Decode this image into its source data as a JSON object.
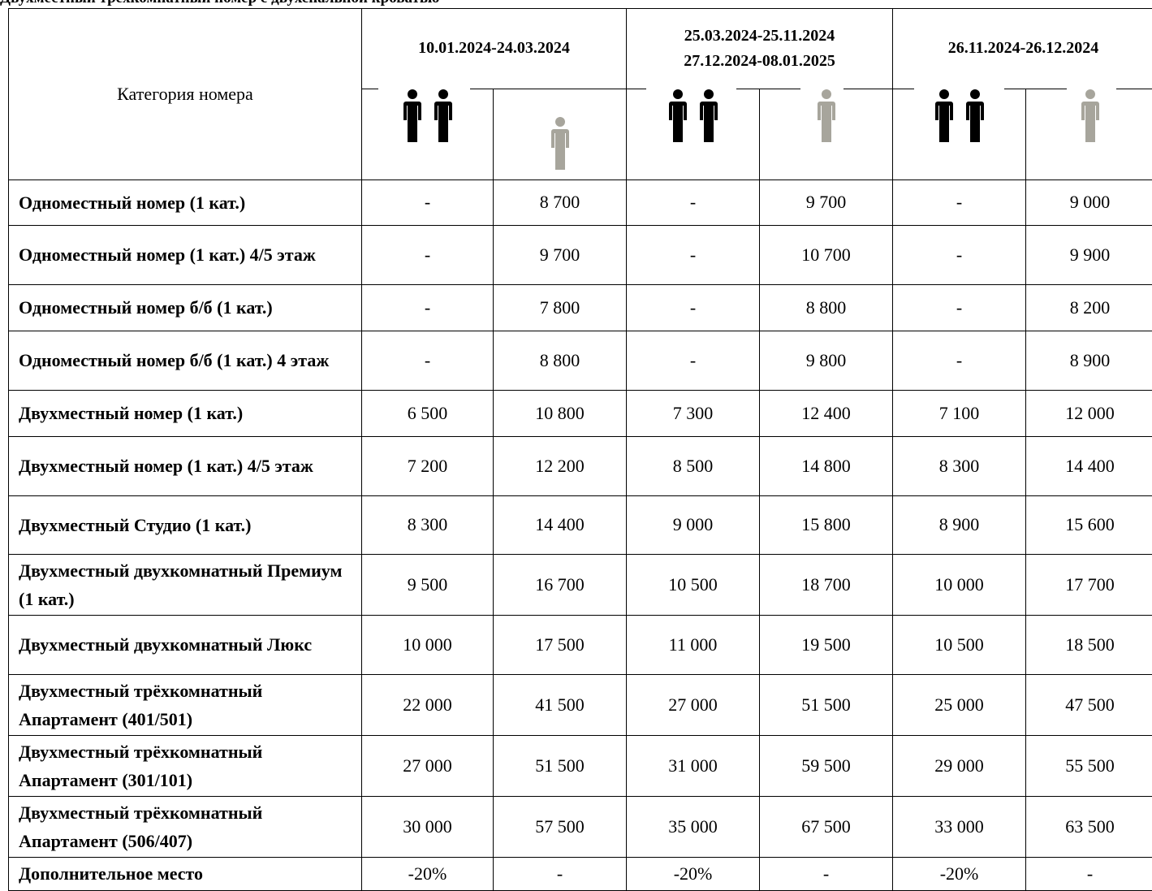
{
  "top_text": "Двухместный трёхкомнатный номер с двухспальной кроватью",
  "header": {
    "category_label": "Категория номера",
    "periods": [
      {
        "lines": [
          "10.01.2024-24.03.2024"
        ]
      },
      {
        "lines": [
          "25.03.2024-25.11.2024",
          "27.12.2024-08.01.2025"
        ]
      },
      {
        "lines": [
          "26.11.2024-26.12.2024"
        ]
      }
    ],
    "icons": [
      "two-person-icon",
      "one-person-icon",
      "two-person-icon",
      "one-person-icon",
      "two-person-icon",
      "one-person-icon"
    ]
  },
  "colors": {
    "double_icon": "#000000",
    "single_icon": "#a7a59c",
    "border": "#000000"
  },
  "rows": [
    {
      "category": "Одноместный номер (1 кат.)",
      "values": [
        "-",
        "8 700",
        "-",
        "9 700",
        "-",
        "9 000"
      ]
    },
    {
      "category": "Одноместный номер (1 кат.) 4/5 этаж",
      "values": [
        "-",
        "9 700",
        "-",
        "10 700",
        "-",
        "9 900"
      ]
    },
    {
      "category": "Одноместный номер б/б (1 кат.)",
      "values": [
        "-",
        "7 800",
        "-",
        "8 800",
        "-",
        "8 200"
      ]
    },
    {
      "category": "Одноместный номер б/б (1 кат.) 4 этаж",
      "values": [
        "-",
        "8 800",
        "-",
        "9 800",
        "-",
        "8 900"
      ]
    },
    {
      "category": "Двухместный номер (1 кат.)",
      "values": [
        "6 500",
        "10 800",
        "7 300",
        "12 400",
        "7 100",
        "12 000"
      ]
    },
    {
      "category": "Двухместный номер (1 кат.) 4/5 этаж",
      "values": [
        "7 200",
        "12 200",
        "8 500",
        "14 800",
        "8 300",
        "14 400"
      ]
    },
    {
      "category": "Двухместный Студио (1 кат.)",
      "values": [
        "8 300",
        "14 400",
        "9 000",
        "15 800",
        "8 900",
        "15 600"
      ]
    },
    {
      "category": "Двухместный двухкомнатный Премиум (1 кат.)",
      "values": [
        "9 500",
        "16 700",
        "10 500",
        "18 700",
        "10 000",
        "17 700"
      ]
    },
    {
      "category": "Двухместный двухкомнатный Люкс",
      "values": [
        "10 000",
        "17 500",
        "11 000",
        "19 500",
        "10 500",
        "18 500"
      ]
    },
    {
      "category": "Двухместный трёхкомнатный Апартамент (401/501)",
      "values": [
        "22 000",
        "41 500",
        "27 000",
        "51 500",
        "25 000",
        "47 500"
      ]
    },
    {
      "category": "Двухместный трёхкомнатный Апартамент (301/101)",
      "values": [
        "27 000",
        "51 500",
        "31 000",
        "59 500",
        "29 000",
        "55 500"
      ]
    },
    {
      "category": "Двухместный трёхкомнатный Апартамент (506/407)",
      "values": [
        "30 000",
        "57 500",
        "35 000",
        "67 500",
        "33 000",
        "63 500"
      ]
    },
    {
      "category": "Дополнительное место",
      "values": [
        "-20%",
        "-",
        "-20%",
        "-",
        "-20%",
        "-"
      ]
    }
  ]
}
